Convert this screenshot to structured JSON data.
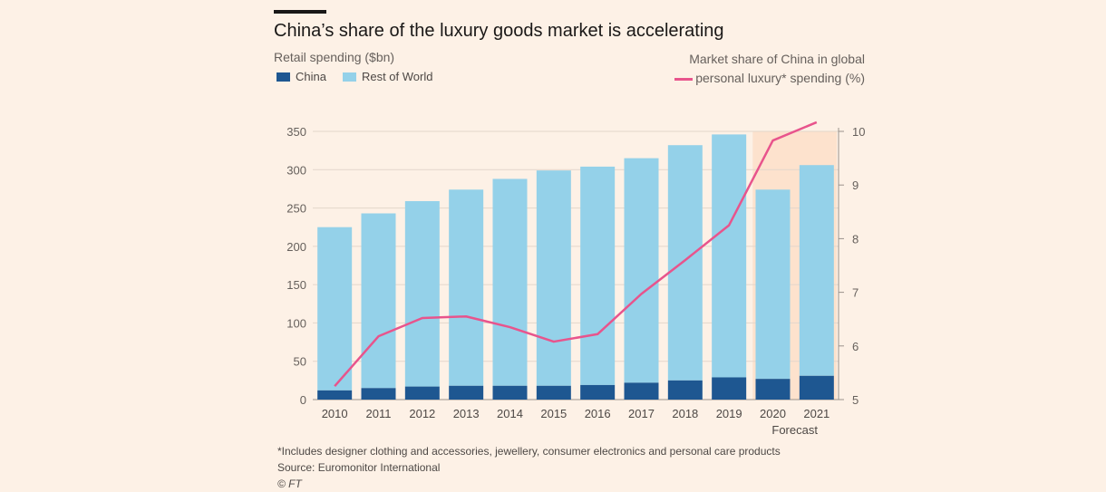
{
  "title": "China’s share of the luxury goods market is accelerating",
  "left_axis_title": "Retail spending ($bn)",
  "right_axis_title_line1": "Market share of China in global",
  "right_axis_title_line2": "personal luxury* spending (%)",
  "legend": [
    {
      "name": "China",
      "color": "#1e5791"
    },
    {
      "name": "Rest of World",
      "color": "#94d1e9"
    }
  ],
  "forecast_label": "Forecast",
  "footnote": "*Includes designer clothing and accessories, jewellery, consumer electronics and personal care products",
  "source": "Source: Euromonitor International",
  "copyright": "© FT",
  "colors": {
    "china": "#1e5791",
    "rest_of_world": "#94d1e9",
    "share_line": "#e8548c",
    "forecast_shade": "#fde2cd"
  },
  "chart_data": {
    "type": "bar",
    "stacked": true,
    "categories": [
      "2010",
      "2011",
      "2012",
      "2013",
      "2014",
      "2015",
      "2016",
      "2017",
      "2018",
      "2019",
      "2020",
      "2021"
    ],
    "series": [
      {
        "name": "China",
        "values": [
          12,
          15,
          17,
          18,
          18,
          18,
          19,
          22,
          25,
          29,
          27,
          31
        ]
      },
      {
        "name": "Rest of World",
        "values": [
          213,
          228,
          242,
          256,
          270,
          281,
          285,
          293,
          307,
          317,
          247,
          275
        ]
      }
    ],
    "line_series": {
      "axis": "right",
      "values": [
        5.25,
        6.18,
        6.52,
        6.55,
        6.35,
        6.08,
        6.22,
        6.97,
        7.6,
        8.25,
        9.83,
        10.17
      ]
    },
    "ylim": [
      0,
      350
    ],
    "yticks": [
      0,
      50,
      100,
      150,
      200,
      250,
      300,
      350
    ],
    "y2lim": [
      5,
      10
    ],
    "y2ticks": [
      5,
      6,
      7,
      8,
      9,
      10
    ],
    "forecast_categories": [
      "2020",
      "2021"
    ],
    "legend_position": "top-left",
    "grid": true
  }
}
